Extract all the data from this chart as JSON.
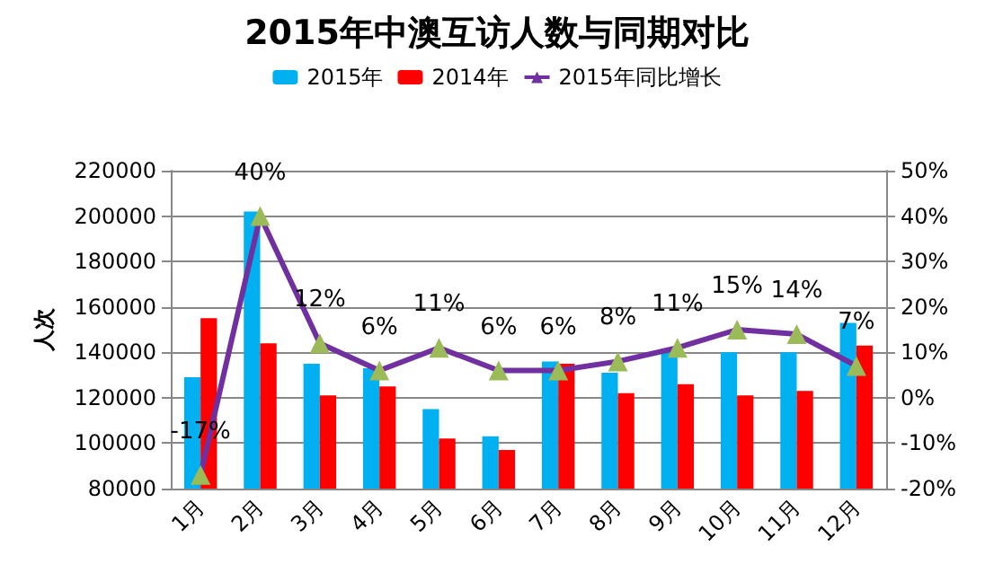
{
  "chart_data": {
    "type": "bar",
    "title": "2015年中澳互访人数与同期对比",
    "ylabel": "人次",
    "categories": [
      "1月",
      "2月",
      "3月",
      "4月",
      "5月",
      "6月",
      "7月",
      "8月",
      "9月",
      "10月",
      "11月",
      "12月"
    ],
    "series": [
      {
        "name": "2015年",
        "color": "#00b0f0",
        "values": [
          129000,
          202000,
          135000,
          133000,
          115000,
          103000,
          136000,
          131000,
          140000,
          140000,
          140000,
          153000
        ]
      },
      {
        "name": "2014年",
        "color": "#ff0000",
        "values": [
          155000,
          144000,
          121000,
          125000,
          102000,
          97000,
          135000,
          122000,
          126000,
          121000,
          123000,
          143000
        ]
      },
      {
        "name": "2015年同比增长",
        "type": "line",
        "axis": "y2",
        "color": "#7030a0",
        "marker": "triangle",
        "values": [
          -17,
          40,
          12,
          6,
          11,
          6,
          6,
          8,
          11,
          15,
          14,
          7
        ],
        "value_labels": [
          "-17%",
          "40%",
          "12%",
          "6%",
          "11%",
          "6%",
          "6%",
          "8%",
          "11%",
          "15%",
          "14%",
          "7%"
        ]
      }
    ],
    "ylim": [
      80000,
      220000
    ],
    "yticks": [
      80000,
      100000,
      120000,
      140000,
      160000,
      180000,
      200000,
      220000
    ],
    "y2lim": [
      -20,
      50
    ],
    "y2ticks": [
      {
        "value": -20,
        "label": "-20%"
      },
      {
        "value": -10,
        "label": "-10%"
      },
      {
        "value": 0,
        "label": "0%"
      },
      {
        "value": 10,
        "label": "10%"
      },
      {
        "value": 20,
        "label": "20%"
      },
      {
        "value": 30,
        "label": "30%"
      },
      {
        "value": 40,
        "label": "40%"
      },
      {
        "value": 50,
        "label": "50%"
      }
    ],
    "grid": "y",
    "legend": "top"
  }
}
